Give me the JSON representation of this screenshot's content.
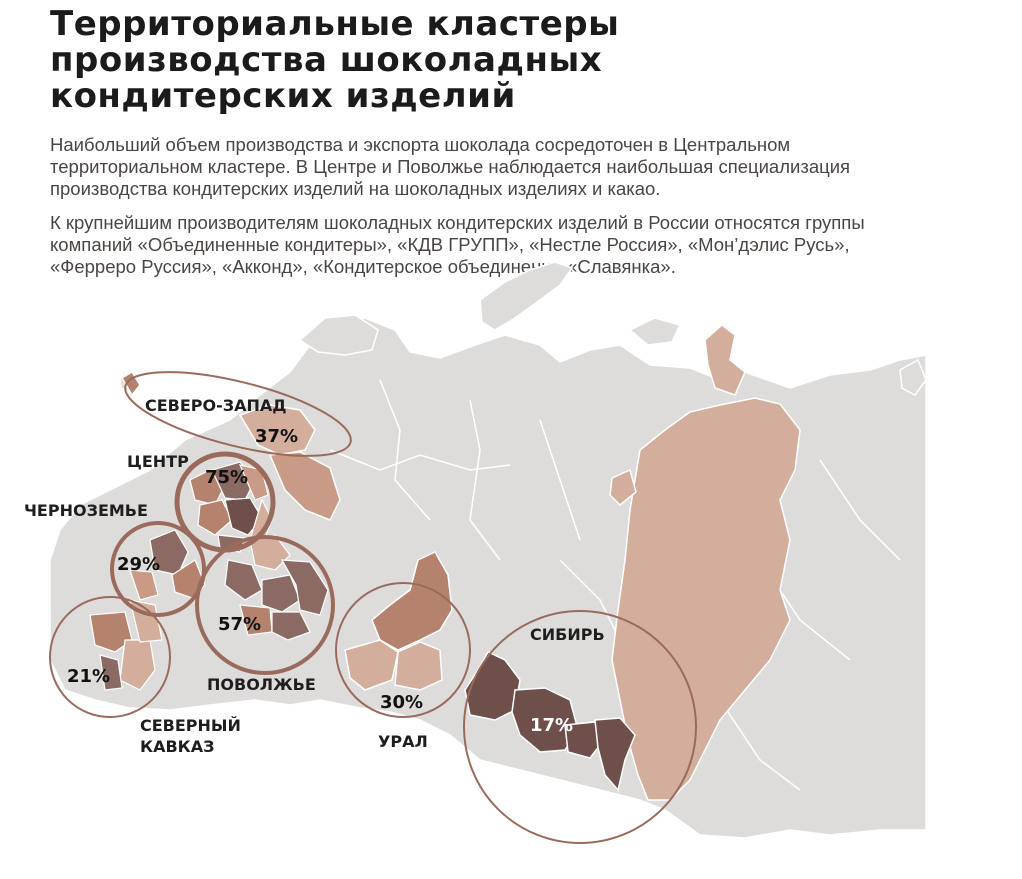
{
  "title_lines": [
    "Территориальные кластеры",
    "производства шоколадных",
    "кондитерских изделий"
  ],
  "paragraph1": "Наибольший объем производства и экспорта шоколада сосредоточен в Центральном территориальном кластере. В Центре и Поволжье наблюдается наибольшая специализация производства кондитерских изделий на шоколадных изделиях и какао.",
  "paragraph2": "К крупнейшим производителям шоколадных кондитерских изделий в России относятся группы компаний «Объединенные кондитеры», «КДВ ГРУПП», «Нестле Россия», «Мон’дэлис Русь», «Ферреро Руссия», «Акконд», «Кондитерское объединение «Славянка».",
  "colors": {
    "land": "#dedcdb",
    "light": "#d4ae9c",
    "medium": "#b5826d",
    "dark": "#8b6a64",
    "darkest": "#6e4f4a",
    "circle": "#9a6b5c"
  },
  "clusters": {
    "northwest": {
      "name": "СЕВЕРО-ЗАПАД",
      "share": "37%",
      "share_value": 37
    },
    "center": {
      "name": "ЦЕНТР",
      "share": "75%",
      "share_value": 75
    },
    "chernozem": {
      "name": "ЧЕРНОЗЕМЬЕ",
      "share": "29%",
      "share_value": 29
    },
    "volga": {
      "name": "ПОВОЛЖЬЕ",
      "share": "57%",
      "share_value": 57
    },
    "caucasus": {
      "name_line1": "СЕВЕРНЫЙ",
      "name_line2": "КАВКАЗ",
      "share": "21%",
      "share_value": 21
    },
    "ural": {
      "name": "УРАЛ",
      "share": "30%",
      "share_value": 30
    },
    "siberia": {
      "name": "СИБИРЬ",
      "share": "17%",
      "share_value": 17
    }
  }
}
